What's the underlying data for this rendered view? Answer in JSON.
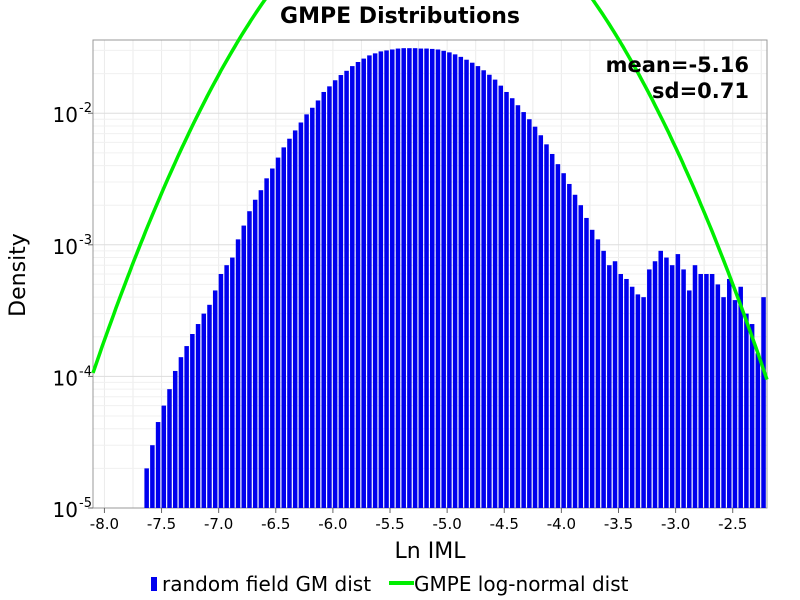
{
  "chart_data": {
    "type": "bar",
    "title": "GMPE Distributions",
    "xlabel": "Ln IML",
    "ylabel": "Density",
    "y_scale": "log",
    "xlim": [
      -8.1,
      -2.2
    ],
    "ylim": [
      1e-05,
      0.036
    ],
    "grid": true,
    "legend_position": "bottom",
    "x_ticks": [
      "-8.0",
      "-7.5",
      "-7.0",
      "-6.5",
      "-6.0",
      "-5.5",
      "-5.0",
      "-4.5",
      "-4.0",
      "-3.5",
      "-3.0",
      "-2.5"
    ],
    "y_ticks": [
      {
        "value": 1e-05,
        "base": "10",
        "exp": "-5"
      },
      {
        "value": 0.0001,
        "base": "10",
        "exp": "-4"
      },
      {
        "value": 0.001,
        "base": "10",
        "exp": "-3"
      },
      {
        "value": 0.01,
        "base": "10",
        "exp": "-2"
      }
    ],
    "annotations": [
      "mean=-5.16",
      "sd=0.71"
    ],
    "series": [
      {
        "name": "random field GM dist",
        "kind": "bar",
        "color": "#0000ee",
        "bin_width": 0.05,
        "bin_starts": [
          -7.65,
          -7.6,
          -7.55,
          -7.5,
          -7.45,
          -7.4,
          -7.35,
          -7.3,
          -7.25,
          -7.2,
          -7.15,
          -7.1,
          -7.05,
          -7.0,
          -6.95,
          -6.9,
          -6.85,
          -6.8,
          -6.75,
          -6.7,
          -6.65,
          -6.6,
          -6.55,
          -6.5,
          -6.45,
          -6.4,
          -6.35,
          -6.3,
          -6.25,
          -6.2,
          -6.15,
          -6.1,
          -6.05,
          -6.0,
          -5.95,
          -5.9,
          -5.85,
          -5.8,
          -5.75,
          -5.7,
          -5.65,
          -5.6,
          -5.55,
          -5.5,
          -5.45,
          -5.4,
          -5.35,
          -5.3,
          -5.25,
          -5.2,
          -5.15,
          -5.1,
          -5.05,
          -5.0,
          -4.95,
          -4.9,
          -4.85,
          -4.8,
          -4.75,
          -4.7,
          -4.65,
          -4.6,
          -4.55,
          -4.5,
          -4.45,
          -4.4,
          -4.35,
          -4.3,
          -4.25,
          -4.2,
          -4.15,
          -4.1,
          -4.05,
          -4.0,
          -3.95,
          -3.9,
          -3.85,
          -3.8,
          -3.75,
          -3.7,
          -3.65,
          -3.6,
          -3.55,
          -3.5,
          -3.45,
          -3.4,
          -3.35,
          -3.3,
          -3.25,
          -3.2,
          -3.15,
          -3.1,
          -3.05,
          -3.0,
          -2.95,
          -2.9,
          -2.85,
          -2.8,
          -2.75,
          -2.7,
          -2.65,
          -2.6,
          -2.55,
          -2.5,
          -2.45,
          -2.4,
          -2.35,
          -2.3,
          -2.25
        ],
        "values": [
          2e-05,
          3e-05,
          4.5e-05,
          6e-05,
          8e-05,
          0.00011,
          0.00014,
          0.00017,
          0.00021,
          0.00025,
          0.0003,
          0.00035,
          0.00045,
          0.0006,
          0.0007,
          0.0008,
          0.0011,
          0.0014,
          0.0018,
          0.0022,
          0.0026,
          0.0032,
          0.0038,
          0.0046,
          0.0055,
          0.0064,
          0.0074,
          0.0085,
          0.0098,
          0.011,
          0.0125,
          0.0145,
          0.016,
          0.0178,
          0.0195,
          0.021,
          0.0228,
          0.0245,
          0.026,
          0.0275,
          0.0285,
          0.0295,
          0.03,
          0.0305,
          0.031,
          0.0312,
          0.0312,
          0.0312,
          0.031,
          0.031,
          0.0308,
          0.0305,
          0.0298,
          0.029,
          0.028,
          0.0268,
          0.0255,
          0.0242,
          0.0228,
          0.0212,
          0.0196,
          0.018,
          0.0162,
          0.0145,
          0.013,
          0.0115,
          0.0102,
          0.009,
          0.0079,
          0.0068,
          0.0058,
          0.0049,
          0.0041,
          0.0035,
          0.0029,
          0.0024,
          0.002,
          0.0016,
          0.0013,
          0.0011,
          0.0009,
          0.0007,
          0.00075,
          0.0006,
          0.00055,
          0.00048,
          0.00042,
          0.0004,
          0.00065,
          0.00075,
          0.0009,
          0.0008,
          0.0007,
          0.00085,
          0.00065,
          0.00045,
          0.0007,
          0.0006,
          0.0006,
          0.0006,
          0.0005,
          0.0004,
          0.00055,
          0.00038,
          0.00048,
          0.0003,
          0.00025,
          0.00015,
          0.0004
        ]
      },
      {
        "name": "GMPE log-normal dist",
        "kind": "line",
        "color": "#00ee00",
        "function": "normal_pdf",
        "mean": -5.16,
        "sd": 0.71
      }
    ]
  }
}
